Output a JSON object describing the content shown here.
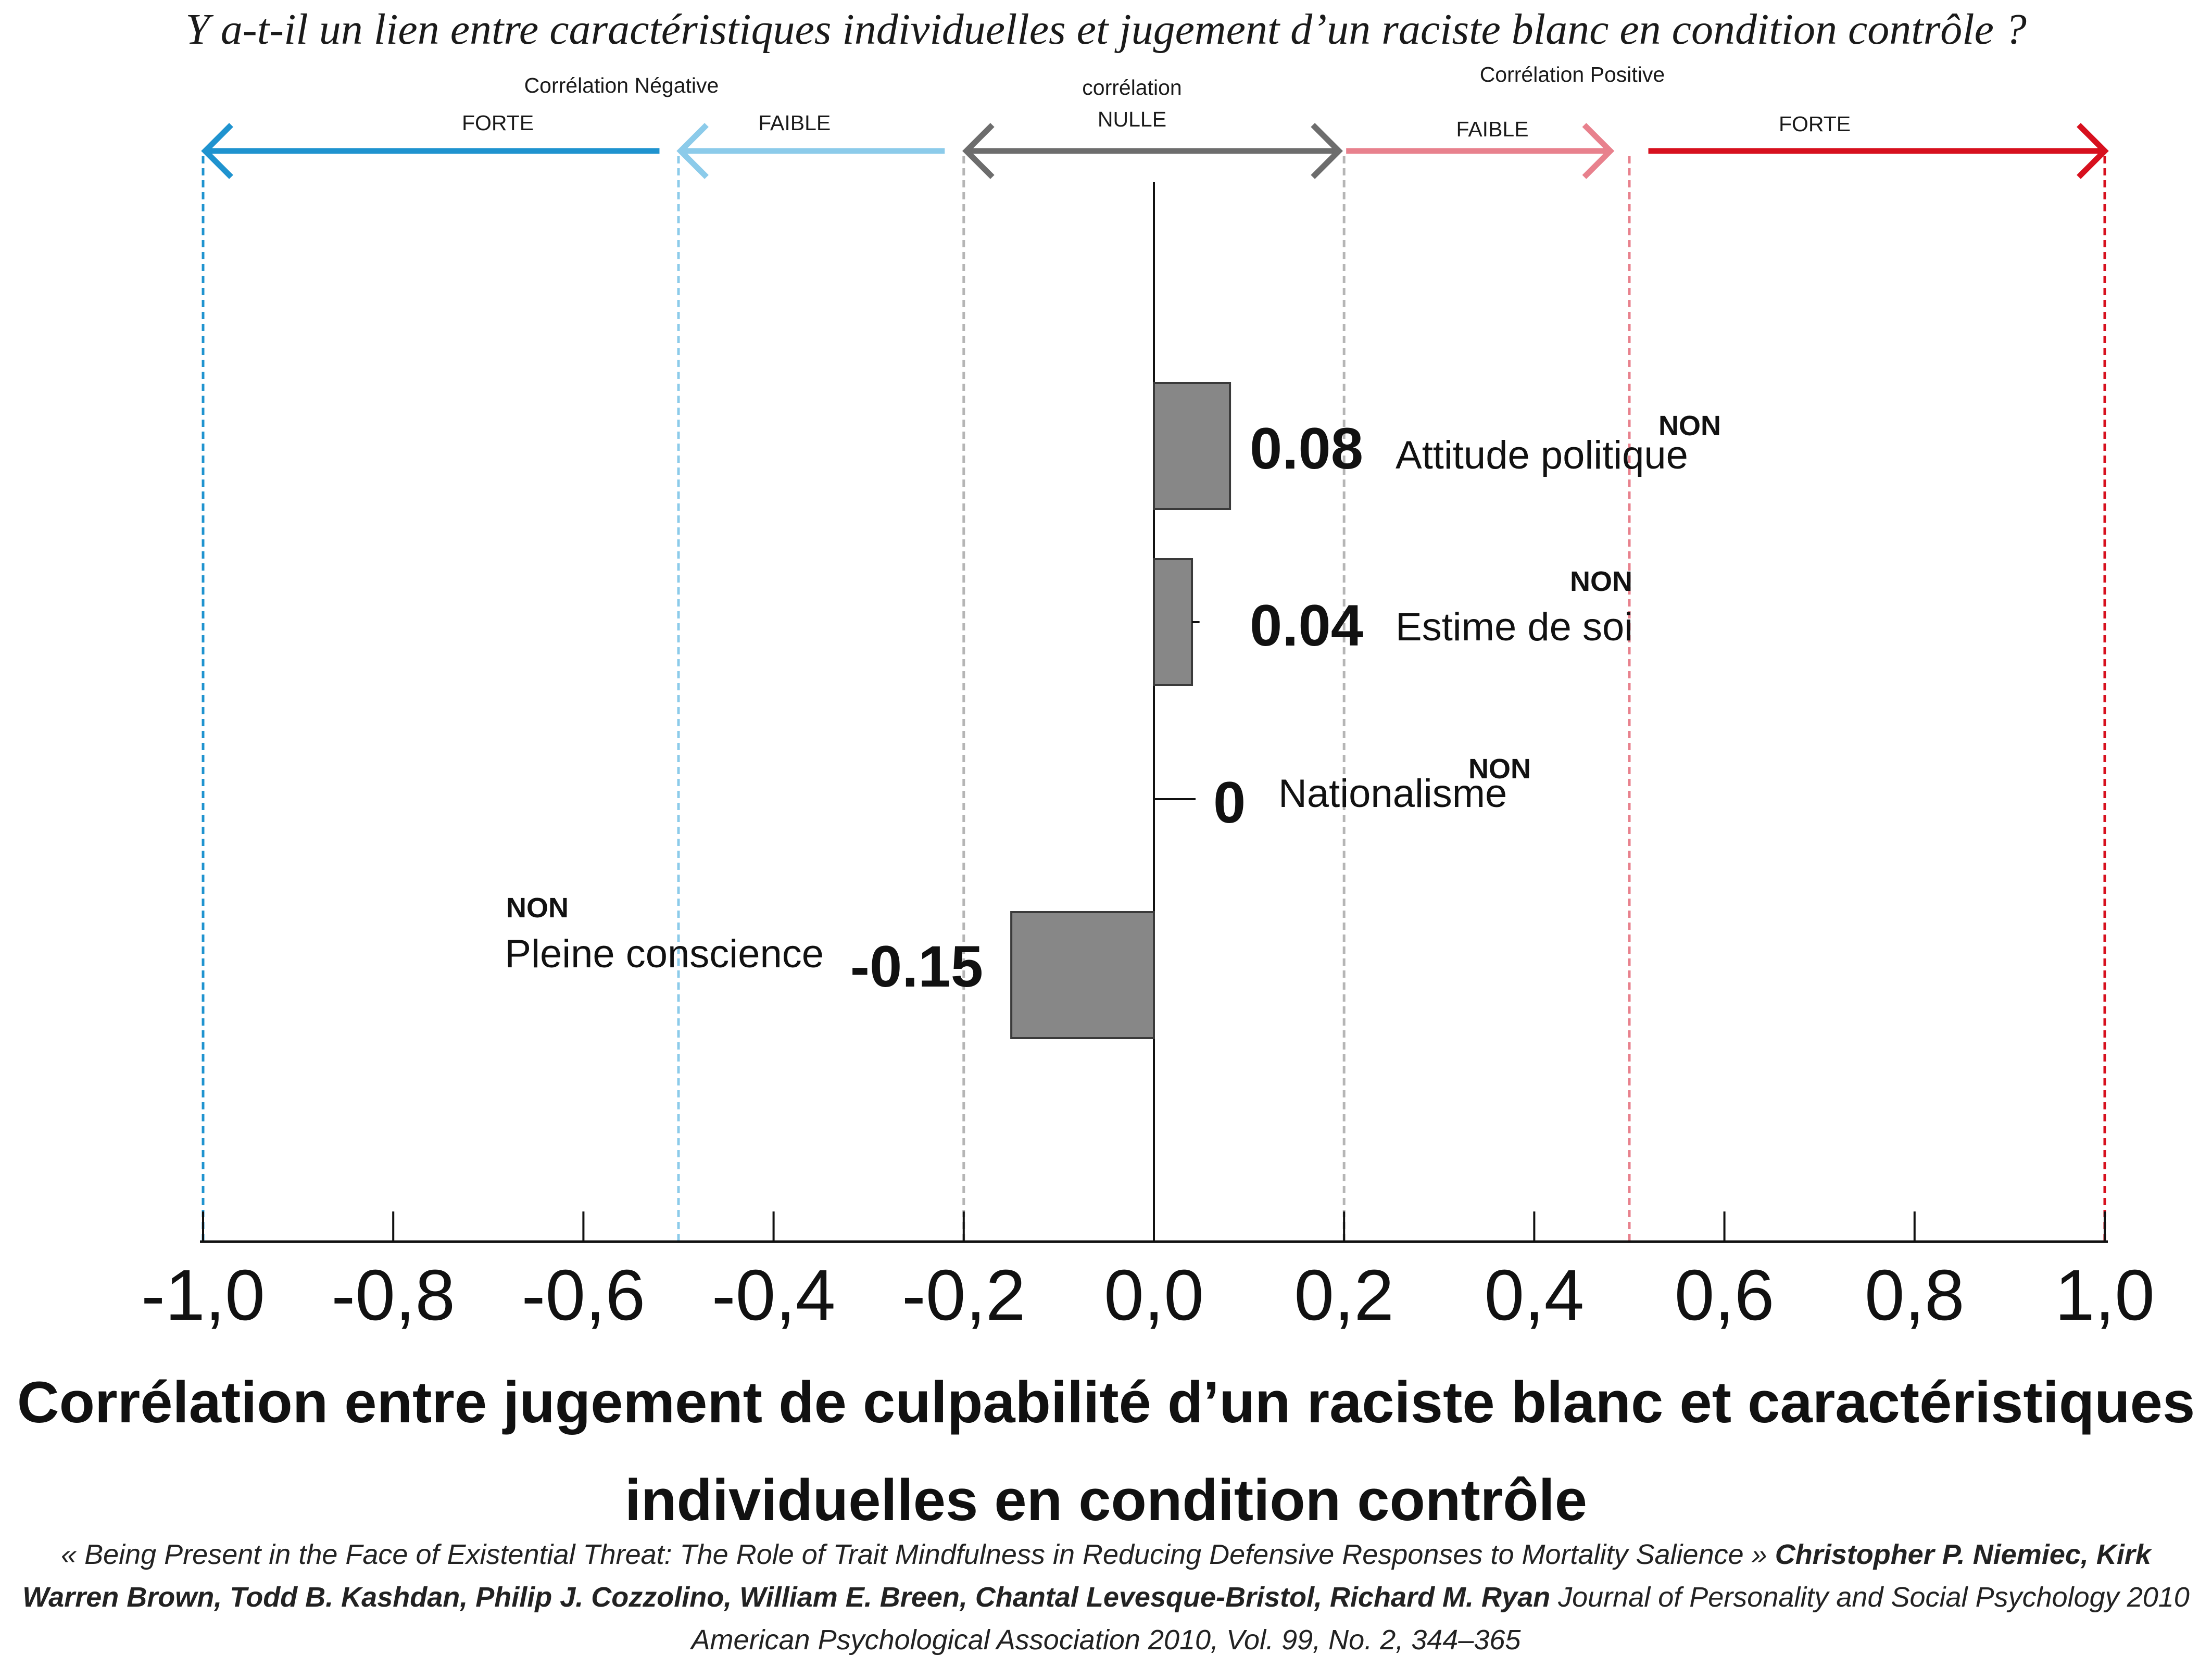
{
  "question": "Y a-t-il un lien entre caractéristiques individuelles et jugement d’un raciste blanc en condition contrôle ?",
  "bands": {
    "negative_title": "Corrélation Négative",
    "positive_title": "Corrélation Positive",
    "null_title": "corrélation",
    "null_label": "NULLE",
    "neg_strong": "FORTE",
    "neg_weak": "FAIBLE",
    "pos_weak": "FAIBLE",
    "pos_strong": "FORTE"
  },
  "colors": {
    "strong_negative": "#1f93cf",
    "weak_negative": "#8ccbea",
    "null": "#6d6d6d",
    "weak_positive": "#e8818d",
    "strong_positive": "#d7101e",
    "bar": "#878787",
    "axis": "#111111"
  },
  "chart_data": {
    "type": "bar",
    "orientation": "horizontal",
    "categories": [
      "Attitude politique",
      "Estime de soi",
      "Nationalisme",
      "Pleine conscience"
    ],
    "values": [
      0.08,
      0.04,
      0,
      -0.15
    ],
    "value_labels": [
      "0.08",
      "0.04",
      "0",
      "-0.15"
    ],
    "significance": [
      "NON",
      "NON",
      "NON",
      "NON"
    ],
    "xlim": [
      -1.0,
      1.0
    ],
    "xticks": [
      -1.0,
      -0.8,
      -0.6,
      -0.4,
      -0.2,
      0.0,
      0.2,
      0.4,
      0.6,
      0.8,
      1.0
    ],
    "xtick_labels": [
      "-1,0",
      "-0,8",
      "-0,6",
      "-0,4",
      "-0,2",
      "0,0",
      "0,2",
      "0,4",
      "0,6",
      "0,8",
      "1,0"
    ],
    "thresholds": [
      -1.0,
      -0.5,
      -0.2,
      0.2,
      0.5,
      1.0
    ],
    "xlabel_line1": "Corrélation entre jugement de culpabilité d’un raciste blanc et caractéristiques",
    "xlabel_line2": "individuelles en condition contrôle",
    "grid": false
  },
  "citation": {
    "title": "« Being Present in the Face of Existential Threat: The Role of Trait Mindfulness in Reducing Defensive Responses to Mortality Salience »",
    "authors": "Christopher P. Niemiec, Kirk Warren Brown, Todd B. Kashdan, Philip J. Cozzolino, William E. Breen, Chantal Levesque-Bristol, Richard M. Ryan",
    "source": "Journal of Personality and Social Psychology  2010 American Psychological Association 2010, Vol. 99, No. 2, 344–365"
  }
}
